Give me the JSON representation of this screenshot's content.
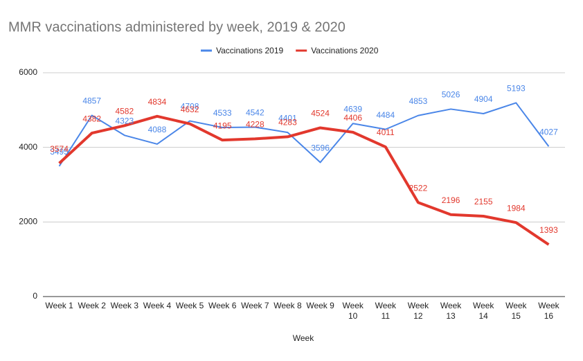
{
  "chart_data": {
    "type": "line",
    "title": "MMR vaccinations administered by week, 2019 & 2020",
    "x_label": "Week",
    "categories": [
      "Week 1",
      "Week 2",
      "Week 3",
      "Week 4",
      "Week 5",
      "Week 6",
      "Week 7",
      "Week 8",
      "Week 9",
      "Week 10",
      "Week 11",
      "Week 12",
      "Week 13",
      "Week 14",
      "Week 15",
      "Week 16"
    ],
    "series": [
      {
        "name": "Vaccinations 2019",
        "color": "#4a86e8",
        "values": [
          3495,
          4857,
          4323,
          4088,
          4708,
          4533,
          4542,
          4401,
          3596,
          4639,
          4484,
          4853,
          5026,
          4904,
          5193,
          4027
        ]
      },
      {
        "name": "Vaccinations 2020",
        "color": "#e2382d",
        "values": [
          3574,
          4382,
          4582,
          4834,
          4632,
          4195,
          4228,
          4283,
          4524,
          4406,
          4011,
          2522,
          2196,
          2155,
          1984,
          1393
        ]
      }
    ],
    "ylim": [
      0,
      6000
    ],
    "yticks": [
      0,
      2000,
      4000,
      6000
    ],
    "grid": true,
    "legend": "top"
  }
}
